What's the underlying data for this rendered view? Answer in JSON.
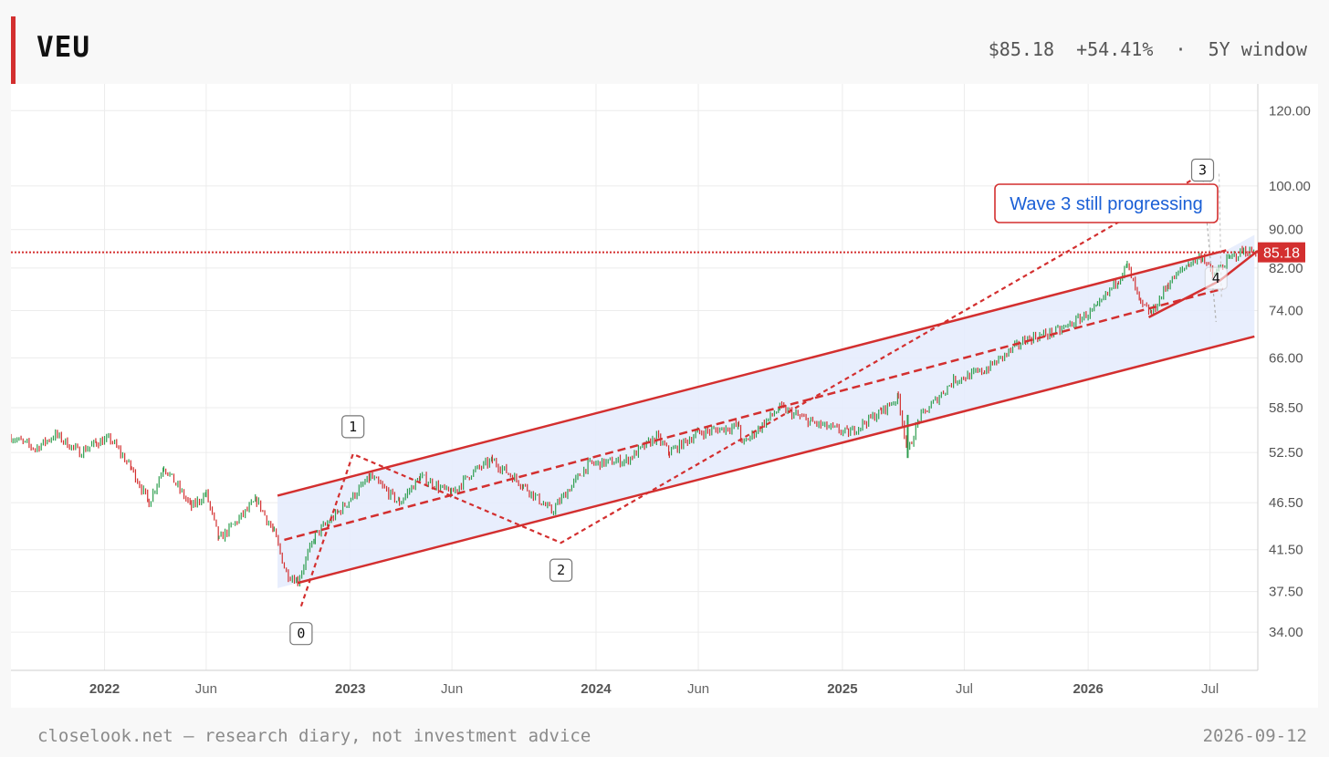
{
  "header": {
    "ticker": "VEU",
    "price": "$85.18",
    "change": "+54.41%",
    "separator": "·",
    "window": "5Y window"
  },
  "footer": {
    "site": "closelook.net — research diary, not investment advice",
    "date": "2026-09-12"
  },
  "colors": {
    "up": "#2e9e4f",
    "down": "#d32f2f",
    "channel_line": "#d32f2f",
    "channel_fill": "#e6ecfd",
    "grid": "#ececec",
    "annotation_text": "#1a5fd6"
  },
  "chart_data": {
    "type": "line",
    "symbol": "VEU",
    "scale": "log",
    "ylim": [
      31,
      128
    ],
    "xlim": [
      "2021-08-15",
      "2026-09-10"
    ],
    "y_ticks": [
      "120.00",
      "100.00",
      "90.00",
      "82.00",
      "74.00",
      "66.00",
      "58.50",
      "52.50",
      "46.50",
      "41.50",
      "37.50",
      "34.00"
    ],
    "y_tick_values": [
      120,
      100,
      90,
      82,
      74,
      66,
      58.5,
      52.5,
      46.5,
      41.5,
      37.5,
      34
    ],
    "x_ticks": [
      {
        "label": "2022",
        "date": "2022-01-01",
        "year": true
      },
      {
        "label": "Jun",
        "date": "2022-06-01",
        "year": false
      },
      {
        "label": "2023",
        "date": "2023-01-01",
        "year": true
      },
      {
        "label": "Jun",
        "date": "2023-06-01",
        "year": false
      },
      {
        "label": "2024",
        "date": "2024-01-01",
        "year": true
      },
      {
        "label": "Jun",
        "date": "2024-06-01",
        "year": false
      },
      {
        "label": "2025",
        "date": "2025-01-01",
        "year": true
      },
      {
        "label": "Jul",
        "date": "2025-07-01",
        "year": false
      },
      {
        "label": "2026",
        "date": "2026-01-01",
        "year": true
      },
      {
        "label": "Jul",
        "date": "2026-07-01",
        "year": false
      }
    ],
    "price_path": [
      [
        "2021-08-15",
        54.5
      ],
      [
        "2021-09-20",
        53
      ],
      [
        "2021-10-20",
        54.8
      ],
      [
        "2021-11-25",
        52.5
      ],
      [
        "2021-12-20",
        53.8
      ],
      [
        "2022-01-10",
        54.2
      ],
      [
        "2022-02-10",
        50.5
      ],
      [
        "2022-03-08",
        46.5
      ],
      [
        "2022-03-30",
        50.8
      ],
      [
        "2022-05-10",
        46
      ],
      [
        "2022-06-01",
        47.5
      ],
      [
        "2022-06-20",
        42.5
      ],
      [
        "2022-08-15",
        46.8
      ],
      [
        "2022-09-10",
        43.2
      ],
      [
        "2022-09-28",
        39.2
      ],
      [
        "2022-10-15",
        38.5
      ],
      [
        "2022-11-10",
        43
      ],
      [
        "2022-12-15",
        45.5
      ],
      [
        "2023-01-31",
        49.5
      ],
      [
        "2023-03-15",
        46.5
      ],
      [
        "2023-04-15",
        49.5
      ],
      [
        "2023-05-31",
        47.5
      ],
      [
        "2023-06-30",
        50
      ],
      [
        "2023-07-31",
        51.5
      ],
      [
        "2023-09-15",
        48.5
      ],
      [
        "2023-10-27",
        45.5
      ],
      [
        "2023-12-20",
        51
      ],
      [
        "2024-02-15",
        51.5
      ],
      [
        "2024-03-31",
        54.5
      ],
      [
        "2024-04-19",
        52.5
      ],
      [
        "2024-05-31",
        55
      ],
      [
        "2024-07-31",
        56
      ],
      [
        "2024-08-05",
        53.5
      ],
      [
        "2024-09-30",
        58.5
      ],
      [
        "2024-11-15",
        56.5
      ],
      [
        "2025-01-10",
        55
      ],
      [
        "2025-02-28",
        58
      ],
      [
        "2025-03-25",
        60
      ],
      [
        "2025-04-08",
        52.5
      ],
      [
        "2025-04-25",
        57
      ],
      [
        "2025-06-15",
        62.5
      ],
      [
        "2025-07-31",
        64
      ],
      [
        "2025-09-30",
        69
      ],
      [
        "2025-11-20",
        70.5
      ],
      [
        "2026-01-15",
        74.5
      ],
      [
        "2026-02-15",
        80
      ],
      [
        "2026-02-28",
        82.5
      ],
      [
        "2026-03-20",
        75
      ],
      [
        "2026-04-05",
        73.5
      ],
      [
        "2026-04-30",
        79
      ],
      [
        "2026-05-31",
        83
      ],
      [
        "2026-06-20",
        84.5
      ],
      [
        "2026-07-05",
        80.5
      ],
      [
        "2026-07-31",
        84
      ],
      [
        "2026-08-20",
        85.5
      ],
      [
        "2026-09-10",
        85.18
      ]
    ],
    "last_price": 85.18,
    "last_price_label": "85.18",
    "channel": {
      "upper": [
        [
          "2022-09-15",
          47.3
        ],
        [
          "2026-07-25",
          85.6
        ]
      ],
      "lower": [
        [
          "2022-10-15",
          38.3
        ],
        [
          "2026-09-05",
          69.5
        ]
      ],
      "mid": [
        [
          "2022-09-25",
          42.5
        ],
        [
          "2026-07-20",
          78
        ]
      ]
    },
    "wave_path": [
      {
        "label": "0",
        "date": "2022-10-20",
        "value": 36.2
      },
      {
        "label": "1",
        "date": "2023-01-05",
        "value": 52.3
      },
      {
        "label": "2",
        "date": "2023-11-10",
        "value": 42.2
      },
      {
        "label": "3",
        "date": "2026-06-20",
        "value": 103
      },
      {
        "label": "4",
        "date": "2026-07-10",
        "value": 80
      }
    ],
    "wedge": [
      [
        "2026-04-01",
        72.8
      ],
      [
        "2026-07-15",
        79.5
      ],
      [
        "2026-09-10",
        85.5
      ]
    ],
    "annotation": "Wave 3 still progressing"
  }
}
